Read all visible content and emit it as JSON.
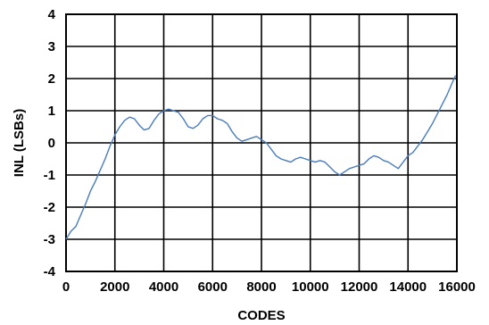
{
  "chart_data": {
    "type": "line",
    "title": "",
    "xlabel": "CODES",
    "ylabel": "INL (LSBs)",
    "xlim": [
      0,
      16000
    ],
    "ylim": [
      -4,
      4
    ],
    "x_ticks": [
      "0",
      "2000",
      "4000",
      "6000",
      "8000",
      "10000",
      "12000",
      "14000",
      "16000"
    ],
    "y_ticks": [
      "4",
      "3",
      "2",
      "1",
      "0",
      "-1",
      "-2",
      "-3",
      "-4"
    ],
    "grid": true,
    "series_color": "#4a7bbd",
    "series": [
      {
        "name": "",
        "points": [
          [
            0,
            -3.0
          ],
          [
            200,
            -2.75
          ],
          [
            400,
            -2.6
          ],
          [
            600,
            -2.25
          ],
          [
            800,
            -1.9
          ],
          [
            1000,
            -1.5
          ],
          [
            1200,
            -1.2
          ],
          [
            1400,
            -0.85
          ],
          [
            1600,
            -0.5
          ],
          [
            1800,
            -0.1
          ],
          [
            2000,
            0.25
          ],
          [
            2200,
            0.5
          ],
          [
            2400,
            0.7
          ],
          [
            2600,
            0.8
          ],
          [
            2800,
            0.75
          ],
          [
            3000,
            0.55
          ],
          [
            3200,
            0.4
          ],
          [
            3400,
            0.45
          ],
          [
            3600,
            0.7
          ],
          [
            3800,
            0.9
          ],
          [
            4000,
            1.0
          ],
          [
            4200,
            1.05
          ],
          [
            4400,
            1.0
          ],
          [
            4600,
            0.95
          ],
          [
            4800,
            0.75
          ],
          [
            5000,
            0.5
          ],
          [
            5200,
            0.45
          ],
          [
            5400,
            0.55
          ],
          [
            5600,
            0.75
          ],
          [
            5800,
            0.85
          ],
          [
            6000,
            0.85
          ],
          [
            6200,
            0.75
          ],
          [
            6400,
            0.7
          ],
          [
            6600,
            0.6
          ],
          [
            6800,
            0.35
          ],
          [
            7000,
            0.15
          ],
          [
            7200,
            0.05
          ],
          [
            7400,
            0.1
          ],
          [
            7600,
            0.15
          ],
          [
            7800,
            0.2
          ],
          [
            8000,
            0.1
          ],
          [
            8200,
            0.0
          ],
          [
            8400,
            -0.2
          ],
          [
            8600,
            -0.4
          ],
          [
            8800,
            -0.5
          ],
          [
            9000,
            -0.55
          ],
          [
            9200,
            -0.6
          ],
          [
            9400,
            -0.5
          ],
          [
            9600,
            -0.45
          ],
          [
            9800,
            -0.5
          ],
          [
            10000,
            -0.55
          ],
          [
            10200,
            -0.6
          ],
          [
            10400,
            -0.55
          ],
          [
            10600,
            -0.6
          ],
          [
            10800,
            -0.75
          ],
          [
            11000,
            -0.9
          ],
          [
            11200,
            -1.0
          ],
          [
            11400,
            -0.9
          ],
          [
            11600,
            -0.8
          ],
          [
            11800,
            -0.75
          ],
          [
            12000,
            -0.7
          ],
          [
            12200,
            -0.65
          ],
          [
            12400,
            -0.5
          ],
          [
            12600,
            -0.4
          ],
          [
            12800,
            -0.45
          ],
          [
            13000,
            -0.55
          ],
          [
            13200,
            -0.6
          ],
          [
            13400,
            -0.7
          ],
          [
            13600,
            -0.8
          ],
          [
            13800,
            -0.6
          ],
          [
            14000,
            -0.4
          ],
          [
            14200,
            -0.3
          ],
          [
            14400,
            -0.1
          ],
          [
            14600,
            0.1
          ],
          [
            14800,
            0.35
          ],
          [
            15000,
            0.6
          ],
          [
            15200,
            0.9
          ],
          [
            15400,
            1.2
          ],
          [
            15600,
            1.5
          ],
          [
            15800,
            1.85
          ],
          [
            15950,
            2.1
          ]
        ]
      }
    ]
  }
}
